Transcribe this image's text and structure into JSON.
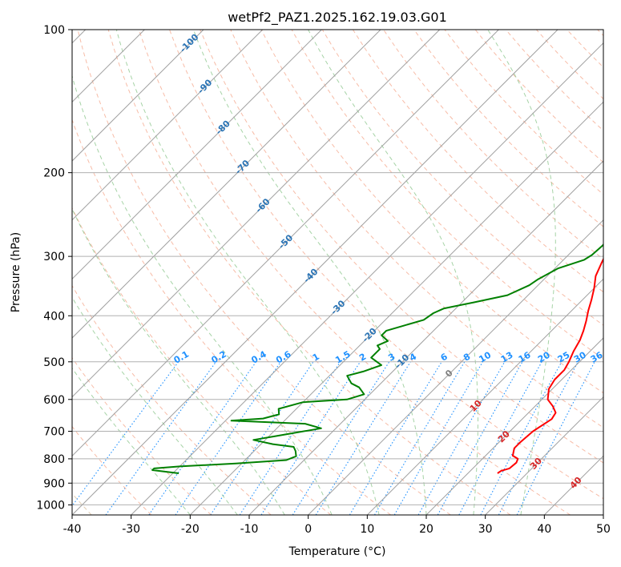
{
  "chart_data": {
    "type": "line",
    "title": "wetPf2_PAZ1.2025.162.19.03.G01",
    "xlabel": "Temperature (°C)",
    "ylabel": "Pressure (hPa)",
    "xlim": [
      -40,
      50
    ],
    "ylim": [
      1050,
      100
    ],
    "y_scale": "log",
    "grid": true,
    "x_ticks": [
      "-40",
      "-30",
      "-20",
      "-10",
      "0",
      "10",
      "20",
      "30",
      "40",
      "50"
    ],
    "y_ticks": [
      "100",
      "200",
      "300",
      "400",
      "500",
      "600",
      "700",
      "800",
      "900",
      "1000"
    ],
    "colors": {
      "temperature": "#ff0000",
      "dewpoint": "#008000",
      "isotherm": "#a0a0a0",
      "dry_adiabat": "#f4a58a",
      "moist_adiabat": "#90c890",
      "mixing_ratio": "#1e90ff"
    },
    "isotherm_labels": [
      {
        "t": -100,
        "p": 107,
        "text": "-100"
      },
      {
        "t": -90,
        "p": 132,
        "text": "-90"
      },
      {
        "t": -80,
        "p": 161,
        "text": "-80"
      },
      {
        "t": -70,
        "p": 195,
        "text": "-70"
      },
      {
        "t": -60,
        "p": 235,
        "text": "-60"
      },
      {
        "t": -50,
        "p": 280,
        "text": "-50"
      },
      {
        "t": -40,
        "p": 330,
        "text": "-40"
      },
      {
        "t": -30,
        "p": 385,
        "text": "-30"
      },
      {
        "t": -20,
        "p": 440,
        "text": "-20"
      },
      {
        "t": -10,
        "p": 500,
        "text": "-10"
      },
      {
        "t": 0,
        "p": 530,
        "text": "0"
      },
      {
        "t": 10,
        "p": 620,
        "text": "10"
      },
      {
        "t": 20,
        "p": 720,
        "text": "20"
      },
      {
        "t": 30,
        "p": 820,
        "text": "30"
      },
      {
        "t": 40,
        "p": 900,
        "text": "40"
      }
    ],
    "mixing_ratio_labels": [
      "0.1",
      "0.2",
      "0.4",
      "0.6",
      "1",
      "1.5",
      "2",
      "3",
      "4",
      "6",
      "8",
      "10",
      "13",
      "16",
      "20",
      "25",
      "30",
      "36"
    ],
    "series": [
      {
        "name": "",
        "role": "temperature",
        "color": "#ff0000",
        "points": [
          [
            25.0,
            858
          ],
          [
            25.2,
            848
          ],
          [
            26.2,
            838
          ],
          [
            26.4,
            815
          ],
          [
            26.0,
            800
          ],
          [
            24.6,
            788
          ],
          [
            23.6,
            760
          ],
          [
            23.6,
            740
          ],
          [
            23.9,
            700
          ],
          [
            25.0,
            660
          ],
          [
            24.6,
            640
          ],
          [
            23.0,
            620
          ],
          [
            21.0,
            600
          ],
          [
            19.4,
            570
          ],
          [
            18.8,
            545
          ],
          [
            18.8,
            520
          ],
          [
            18.2,
            500
          ],
          [
            17.2,
            475
          ],
          [
            16.4,
            450
          ],
          [
            15.4,
            430
          ],
          [
            14.2,
            410
          ],
          [
            12.8,
            390
          ],
          [
            11.5,
            370
          ],
          [
            10.0,
            350
          ],
          [
            8.2,
            330
          ],
          [
            7.0,
            310
          ],
          [
            5.8,
            290
          ],
          [
            4.6,
            270
          ],
          [
            3.4,
            250
          ],
          [
            2.2,
            230
          ],
          [
            0.9,
            210
          ],
          [
            -0.6,
            190
          ],
          [
            -1.6,
            176
          ],
          [
            -2.0,
            166
          ],
          [
            -1.2,
            158
          ],
          [
            0.6,
            148
          ],
          [
            3.0,
            140
          ],
          [
            5.2,
            133
          ],
          [
            7.0,
            128
          ],
          [
            9.0,
            121
          ],
          [
            10.0,
            114
          ],
          [
            11.0,
            106
          ],
          [
            13.6,
            100
          ]
        ]
      },
      {
        "name": "",
        "role": "dewpoint",
        "color": "#008000",
        "points": [
          [
            -29.0,
            858
          ],
          [
            -34.0,
            845
          ],
          [
            -34.0,
            838
          ],
          [
            -30.0,
            830
          ],
          [
            -21.0,
            818
          ],
          [
            -13.0,
            805
          ],
          [
            -12.0,
            790
          ],
          [
            -13.0,
            770
          ],
          [
            -14.0,
            755
          ],
          [
            -18.0,
            745
          ],
          [
            -22.0,
            730
          ],
          [
            -18.5,
            715
          ],
          [
            -12.5,
            690
          ],
          [
            -16.0,
            675
          ],
          [
            -29.0,
            665
          ],
          [
            -24.0,
            658
          ],
          [
            -22.0,
            645
          ],
          [
            -23.0,
            628
          ],
          [
            -20.0,
            608
          ],
          [
            -13.0,
            600
          ],
          [
            -11.0,
            585
          ],
          [
            -13.0,
            566
          ],
          [
            -15.0,
            555
          ],
          [
            -17.0,
            535
          ],
          [
            -15.0,
            524
          ],
          [
            -13.0,
            508
          ],
          [
            -16.0,
            490
          ],
          [
            -16.0,
            470
          ],
          [
            -17.0,
            462
          ],
          [
            -16.0,
            452
          ],
          [
            -18.0,
            440
          ],
          [
            -18.0,
            430
          ],
          [
            -16.0,
            420
          ],
          [
            -13.5,
            408
          ],
          [
            -13.0,
            395
          ],
          [
            -12.0,
            386
          ],
          [
            -8.0,
            375
          ],
          [
            -3.5,
            362
          ],
          [
            -1.5,
            345
          ],
          [
            -1.0,
            335
          ],
          [
            0.5,
            318
          ],
          [
            3.5,
            305
          ],
          [
            4.0,
            298
          ],
          [
            4.2,
            285
          ],
          [
            4.0,
            272
          ],
          [
            3.2,
            255
          ],
          [
            2.2,
            237
          ],
          [
            1.0,
            218
          ],
          [
            -0.2,
            200
          ],
          [
            -1.5,
            185
          ],
          [
            -2.0,
            172
          ],
          [
            -2.2,
            164
          ],
          [
            -2.0,
            150
          ],
          [
            -2.6,
            143
          ],
          [
            -2.6,
            130
          ],
          [
            -2.8,
            122
          ],
          [
            -3.0,
            117
          ],
          [
            -1.6,
            112
          ],
          [
            -0.6,
            107
          ],
          [
            -0.2,
            102
          ],
          [
            0.2,
            100
          ]
        ]
      }
    ]
  }
}
